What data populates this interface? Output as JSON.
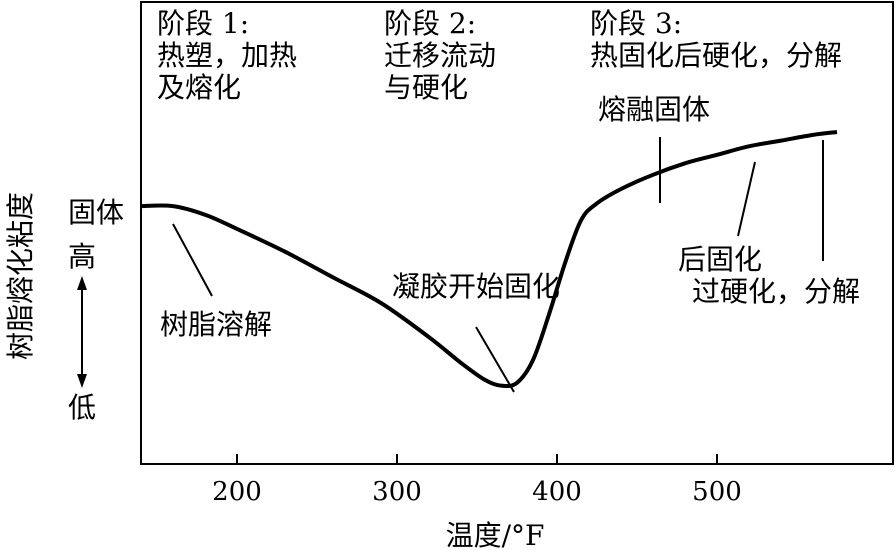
{
  "chart_data": {
    "type": "line",
    "xlabel": "温度/°F",
    "ylabel": "树脂熔化粘度",
    "xticks": [
      200,
      300,
      400,
      500
    ],
    "xlim": [
      140,
      610
    ],
    "ylim": [
      0,
      100
    ],
    "grid": false,
    "y_level_labels": {
      "solid": "固体",
      "high": "高",
      "low": "低"
    },
    "series": [
      {
        "x": [
          140,
          160,
          180,
          200,
          230,
          260,
          290,
          320,
          340,
          355,
          365,
          375,
          385,
          395,
          405,
          415,
          425,
          440,
          460,
          480,
          500,
          520,
          540,
          560,
          575
        ],
        "values": [
          74,
          74,
          71,
          66,
          58,
          49,
          40,
          28,
          19,
          13,
          11,
          12,
          20,
          36,
          54,
          69,
          75,
          80,
          85,
          89,
          92,
          95,
          97,
          99,
          100
        ]
      }
    ],
    "annotations": [
      {
        "text": "阶段 1:\n热塑，加热\n及熔化"
      },
      {
        "text": "阶段 2:\n迁移流动\n与硬化"
      },
      {
        "text": "阶段 3:\n热固化后硬化，分解"
      },
      {
        "text": "熔融固体"
      },
      {
        "text": "后固化\n过硬化，分解"
      },
      {
        "text": "凝胶开始固化"
      },
      {
        "text": "树脂溶解"
      }
    ]
  }
}
